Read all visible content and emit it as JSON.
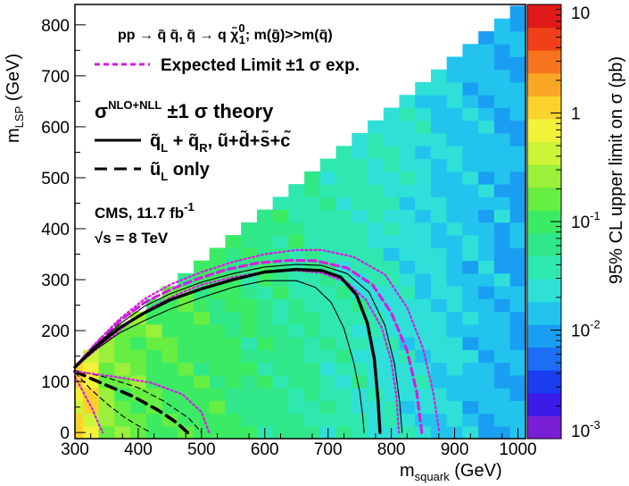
{
  "chart_data": {
    "type": "heatmap",
    "title": "",
    "xlabel_main": "m",
    "xlabel_sub": "squark",
    "xlabel_unit": " (GeV)",
    "ylabel_main": "m",
    "ylabel_sub": "LSP",
    "ylabel_unit": " (GeV)",
    "zlabel": "95% CL upper limit on σ (pb)",
    "xlim": [
      300,
      1012
    ],
    "ylim": [
      -12,
      840
    ],
    "zlim": [
      0.001,
      10
    ],
    "z_scale": "log",
    "grid": false,
    "x_ticks": [
      "300",
      "400",
      "500",
      "600",
      "700",
      "800",
      "900",
      "1000"
    ],
    "y_ticks": [
      "0",
      "100",
      "200",
      "300",
      "400",
      "500",
      "600",
      "700",
      "800"
    ],
    "z_ticks": [
      {
        "base": "10",
        "exp": "",
        "value": 10
      },
      {
        "base": "1",
        "exp": "",
        "value": 1
      },
      {
        "base": "10",
        "exp": "-1",
        "value": 0.1
      },
      {
        "base": "10",
        "exp": "-2",
        "value": 0.01
      },
      {
        "base": "10",
        "exp": "-3",
        "value": 0.001
      }
    ],
    "bin_width": 25,
    "colors": [
      "#7a1fd6",
      "#3a1be8",
      "#1a3df0",
      "#1c6ef4",
      "#1a9ef2",
      "#22c4ee",
      "#2fe0d8",
      "#2ee8b0",
      "#30e88a",
      "#3ceb64",
      "#66ee42",
      "#9af03a",
      "#cdf438",
      "#f3f238",
      "#fbd22c",
      "#f9a624",
      "#f6741e",
      "#f04018",
      "#e01a16"
    ],
    "series": [
      {
        "name": "Expected Limit ±1 σ exp. (central)",
        "style": "magenta-dashed",
        "x": [
          300,
          330,
          370,
          410,
          450,
          490,
          540,
          590,
          640,
          680,
          730,
          770,
          800,
          825,
          840,
          848
        ],
        "y": [
          128,
          170,
          218,
          255,
          280,
          300,
          320,
          333,
          338,
          337,
          323,
          290,
          235,
          160,
          80,
          0
        ]
      },
      {
        "name": "Expected +1 σ exp.",
        "style": "magenta-dotted",
        "x": [
          300,
          330,
          370,
          410,
          450,
          500,
          550,
          600,
          650,
          690,
          740,
          790,
          825,
          850,
          866,
          876
        ],
        "y": [
          128,
          172,
          222,
          262,
          290,
          315,
          335,
          350,
          358,
          358,
          345,
          310,
          245,
          165,
          80,
          0
        ]
      },
      {
        "name": "Expected -1 σ exp.",
        "style": "magenta-dotted",
        "x": [
          300,
          340,
          380,
          420,
          460,
          500,
          550,
          600,
          650,
          690,
          730,
          760,
          785,
          800,
          808,
          812
        ],
        "y": [
          128,
          170,
          210,
          245,
          270,
          290,
          305,
          315,
          318,
          313,
          295,
          260,
          205,
          140,
          70,
          0
        ]
      },
      {
        "name": "q_L + q_R, u+d+s+c observed",
        "style": "black-solid-thick",
        "x": [
          300,
          330,
          370,
          410,
          450,
          500,
          550,
          600,
          650,
          690,
          720,
          745,
          762,
          773,
          779,
          782
        ],
        "y": [
          128,
          165,
          205,
          235,
          260,
          282,
          300,
          315,
          320,
          318,
          305,
          270,
          215,
          145,
          65,
          0
        ]
      },
      {
        "name": "theory +1 σ",
        "style": "black-solid-thin",
        "x": [
          300,
          330,
          370,
          410,
          450,
          500,
          550,
          600,
          650,
          690,
          730,
          765,
          790,
          805,
          813,
          817
        ],
        "y": [
          128,
          168,
          212,
          248,
          272,
          295,
          312,
          325,
          330,
          328,
          312,
          275,
          210,
          135,
          60,
          0
        ]
      },
      {
        "name": "theory -1 σ",
        "style": "black-solid-thin",
        "x": [
          300,
          330,
          370,
          410,
          450,
          500,
          550,
          600,
          650,
          680,
          705,
          725,
          740,
          750,
          755,
          757
        ],
        "y": [
          128,
          160,
          195,
          220,
          242,
          265,
          285,
          298,
          298,
          285,
          255,
          205,
          140,
          80,
          30,
          0
        ]
      },
      {
        "name": "u_L only observed",
        "style": "black-dashed-thick",
        "x": [
          300,
          340,
          390,
          430,
          460,
          478
        ],
        "y": [
          120,
          98,
          72,
          45,
          20,
          0
        ]
      },
      {
        "name": "u_L only theory +1 σ",
        "style": "black-dashed-thin",
        "x": [
          300,
          350,
          400,
          440,
          480,
          500
        ],
        "y": [
          122,
          108,
          88,
          62,
          28,
          0
        ]
      },
      {
        "name": "u_L only theory -1 σ",
        "style": "black-dashed-thin",
        "x": [
          300,
          325,
          352,
          378,
          402,
          420
        ],
        "y": [
          118,
          85,
          55,
          30,
          12,
          0
        ]
      },
      {
        "name": "Expected u_L only",
        "style": "magenta-dotted",
        "x": [
          300,
          360,
          420,
          470,
          500,
          512
        ],
        "y": [
          120,
          110,
          98,
          75,
          40,
          0
        ]
      },
      {
        "name": "Expected u_L only -1 σ",
        "style": "magenta-dotted",
        "x": [
          300,
          315,
          328,
          338,
          344
        ],
        "y": [
          110,
          75,
          45,
          15,
          0
        ]
      }
    ]
  },
  "legend": {
    "process_pp": "pp → ",
    "process_rest": "q̃ q̃, q̃ → q χ̃",
    "process_chi_sup": "0",
    "process_chi_sub": "1",
    "process_tail": "; m(g̃)>>m(q̃)",
    "expected": "Expected Limit ±1 σ exp.",
    "theory_sigma": "σ",
    "theory_sup": "NLO+NLL",
    "theory_tail": " ±1 σ theory",
    "entry1_a": "q̃",
    "entry1_sub1": "L",
    "entry1_b": " + q̃",
    "entry1_sub2": "R",
    "entry1_c": ", ũ+d̃+s̃+c̃",
    "entry2_a": "ũ",
    "entry2_sub": "L",
    "entry2_b": " only",
    "cms": "CMS, 11.7 fb",
    "cms_sup": "-1",
    "sqrt_s": "√s = 8 TeV"
  }
}
